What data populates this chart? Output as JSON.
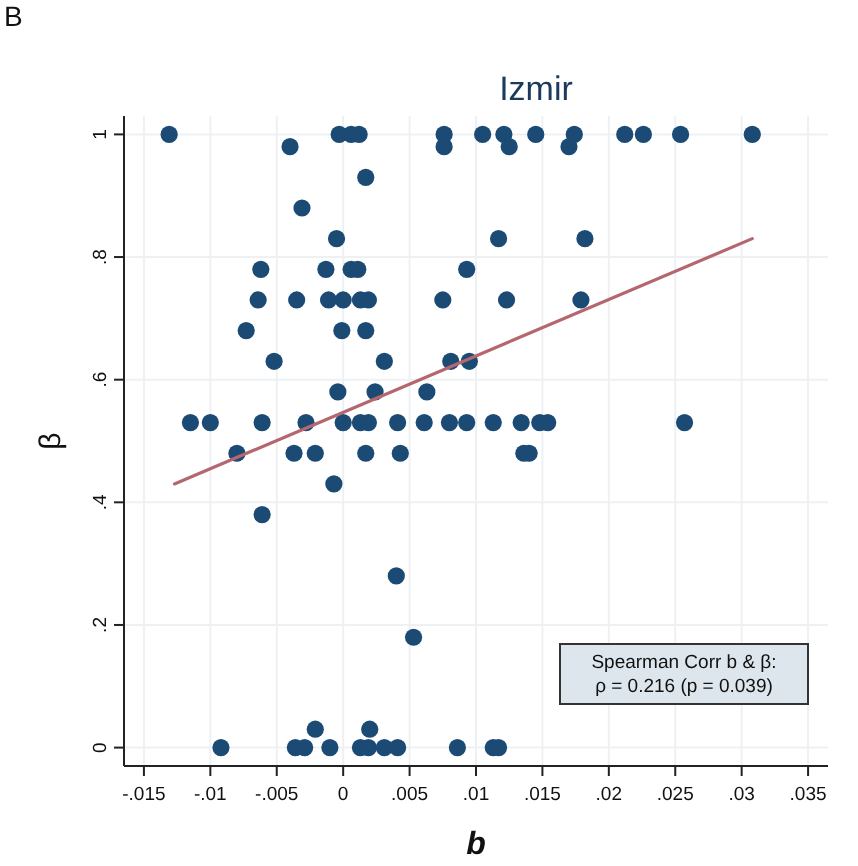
{
  "chart_data": {
    "type": "scatter",
    "title": "Izmir",
    "xlabel": "b",
    "ylabel": "β",
    "annotations": [
      "B",
      "Spearman Corr b & β:",
      "ρ = 0.216 (p = 0.039)"
    ],
    "xlim": [
      -0.0165,
      0.0365
    ],
    "ylim": [
      -0.03,
      1.03
    ],
    "xticks": [
      {
        "value": -0.015,
        "label": "-.015"
      },
      {
        "value": -0.01,
        "label": "-.01"
      },
      {
        "value": -0.005,
        "label": "-.005"
      },
      0,
      {
        "value": 0.005,
        "label": ".005"
      },
      {
        "value": 0.01,
        "label": ".01"
      },
      {
        "value": 0.015,
        "label": ".015"
      },
      {
        "value": 0.02,
        "label": ".02"
      },
      {
        "value": 0.025,
        "label": ".025"
      },
      {
        "value": 0.03,
        "label": ".03"
      },
      {
        "value": 0.035,
        "label": ".035"
      }
    ],
    "yticks": [
      0,
      {
        "value": 0.2,
        "label": ".2"
      },
      {
        "value": 0.4,
        "label": ".4"
      },
      {
        "value": 0.6,
        "label": ".6"
      },
      {
        "value": 0.8,
        "label": ".8"
      },
      1
    ],
    "grid": true,
    "marker": "circle",
    "series": [
      {
        "color": "#1b4a75",
        "x": [
          -0.0131,
          -0.004,
          -0.0003,
          0.0006,
          0.0012,
          0.0076,
          0.0076,
          0.0105,
          0.0121,
          0.0125,
          0.0145,
          0.017,
          0.0174,
          0.0212,
          0.0226,
          0.0254,
          0.0308,
          0.0017,
          -0.0031,
          -0.0005,
          0.0117,
          0.0182,
          -0.0062,
          -0.0013,
          0.0006,
          0.0011,
          0.0093,
          -0.0064,
          -0.0035,
          -0.0011,
          0,
          0.0013,
          0.0019,
          0.0075,
          0.0123,
          0.0179,
          -0.0073,
          -0.0001,
          0.0017,
          -0.0052,
          0.0031,
          0.0081,
          0.0095,
          -0.0004,
          0.0024,
          0.0063,
          -0.0115,
          -0.01,
          -0.0061,
          -0.0028,
          0,
          0.0013,
          0.0019,
          0.0041,
          0.0061,
          0.008,
          0.0093,
          0.0113,
          0.0134,
          0.0148,
          0.0154,
          0.0257,
          -0.008,
          -0.0037,
          -0.0021,
          0.0017,
          0.0043,
          0.0136,
          0.014,
          -0.0007,
          -0.0061,
          0.004,
          0.0053,
          -0.0021,
          0.002,
          -0.0092,
          -0.0036,
          -0.0029,
          -0.001,
          0.0013,
          0.0019,
          0.0031,
          0.0041,
          0.0086,
          0.0113,
          0.0117
        ],
        "values": [
          1,
          0.98,
          1,
          1,
          1,
          1,
          0.98,
          1,
          1,
          0.98,
          1,
          0.98,
          1,
          1,
          1,
          1,
          1,
          0.93,
          0.88,
          0.83,
          0.83,
          0.83,
          0.78,
          0.78,
          0.78,
          0.78,
          0.78,
          0.73,
          0.73,
          0.73,
          0.73,
          0.73,
          0.73,
          0.73,
          0.73,
          0.73,
          0.68,
          0.68,
          0.68,
          0.63,
          0.63,
          0.63,
          0.63,
          0.58,
          0.58,
          0.58,
          0.53,
          0.53,
          0.53,
          0.53,
          0.53,
          0.53,
          0.53,
          0.53,
          0.53,
          0.53,
          0.53,
          0.53,
          0.53,
          0.53,
          0.53,
          0.53,
          0.48,
          0.48,
          0.48,
          0.48,
          0.48,
          0.48,
          0.48,
          0.43,
          0.38,
          0.28,
          0.18,
          0.03,
          0.03,
          0,
          0,
          0,
          0,
          0,
          0,
          0,
          0,
          0,
          0,
          0
        ]
      },
      {
        "type": "line",
        "marker": "none",
        "color": "#b5676f",
        "x": [
          -0.0127,
          0.0308
        ],
        "values": [
          0.43,
          0.83
        ]
      }
    ]
  }
}
